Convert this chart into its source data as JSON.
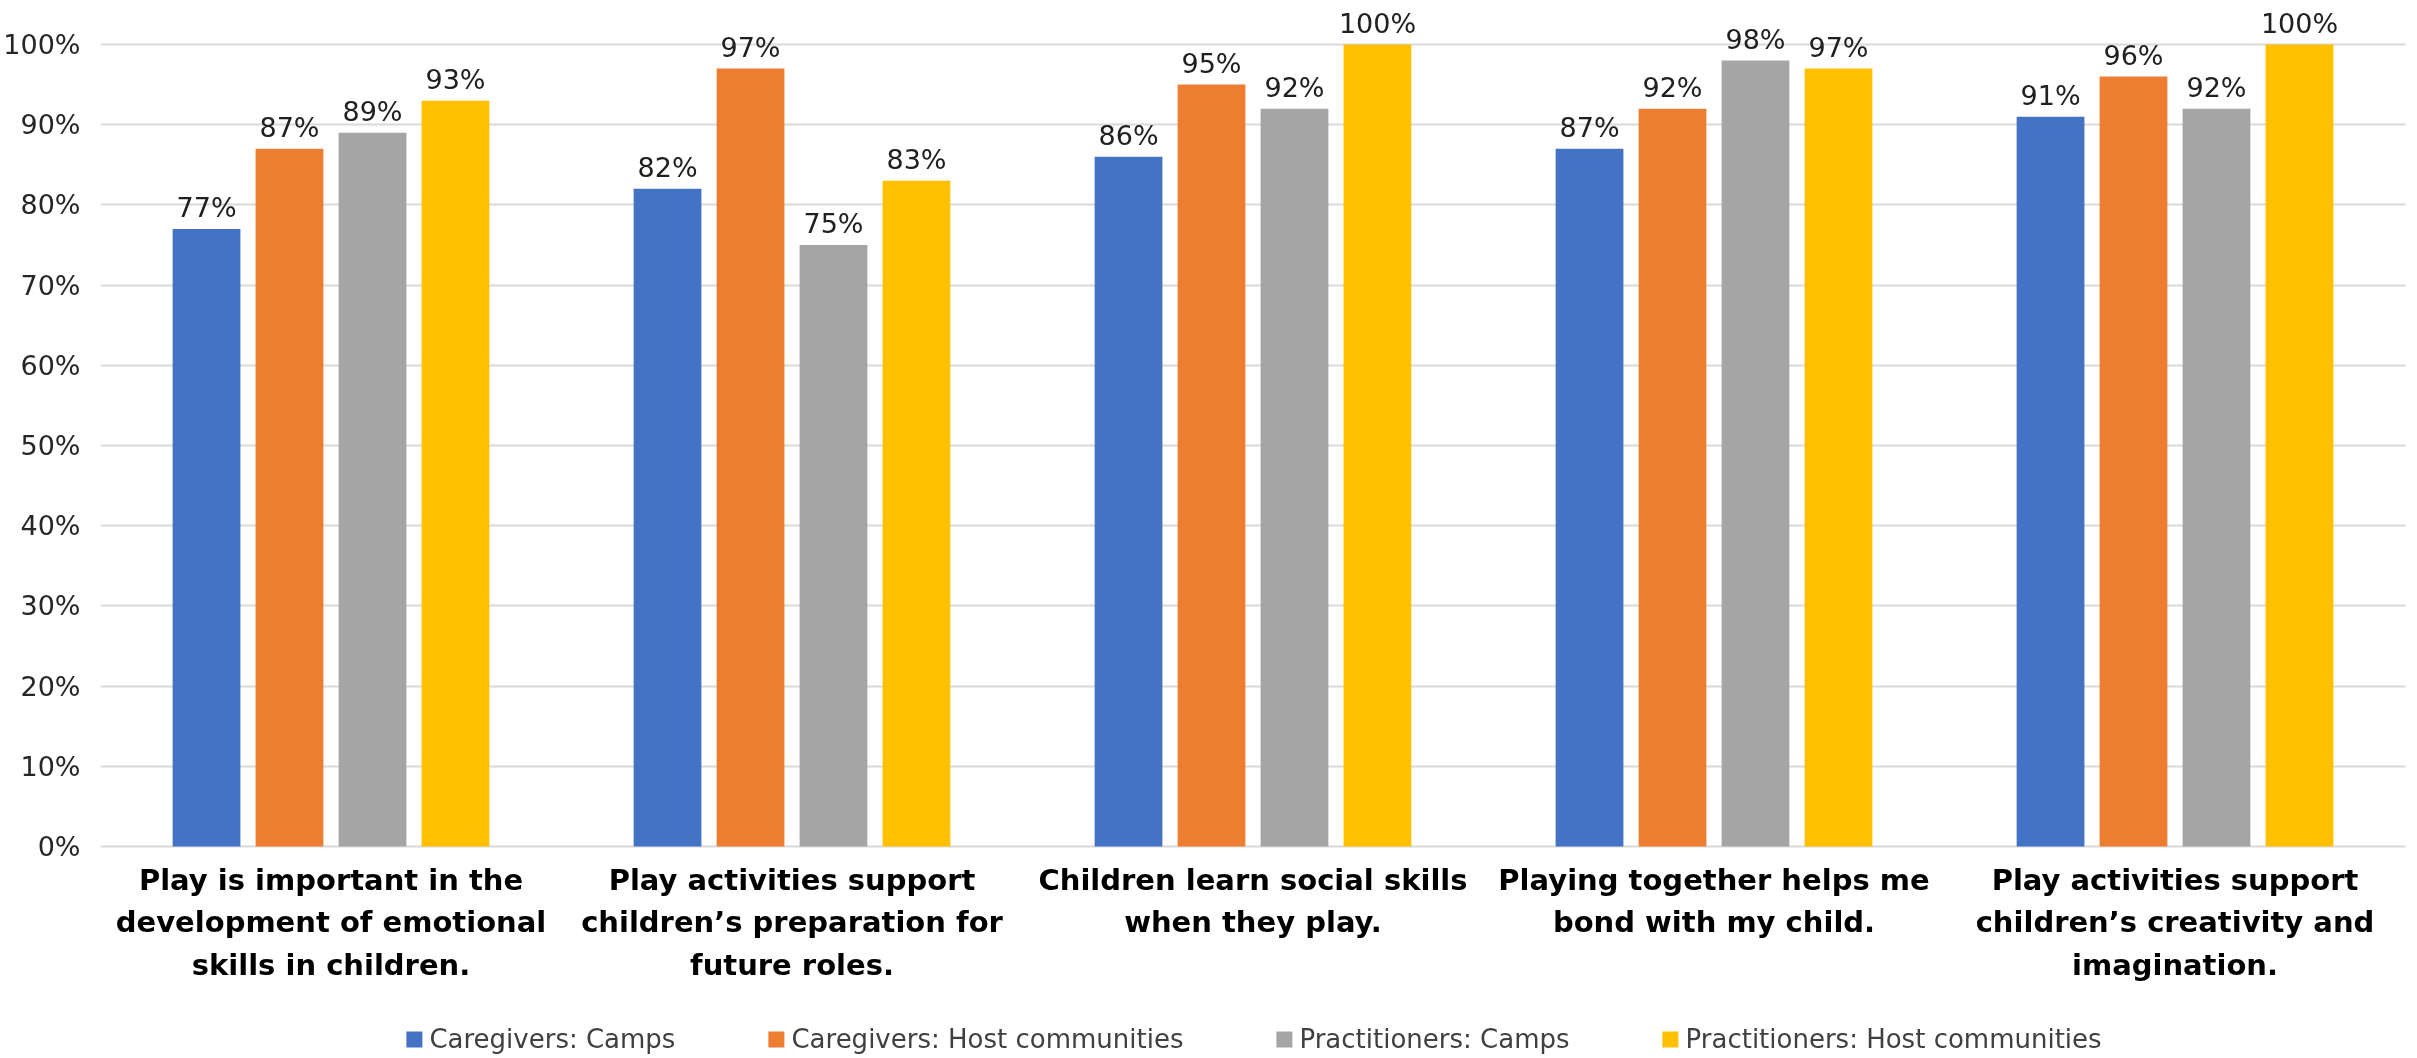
{
  "chart_data": {
    "type": "bar",
    "categories": [
      "Play is important in the development of emotional skills in children.",
      "Play activities support children’s preparation for future roles.",
      "Children learn social skills when they play.",
      "Playing together helps me bond with my child.",
      "Play activities support children’s creativity and imagination."
    ],
    "series": [
      {
        "name": "Caregivers: Camps",
        "color": "#4472c4",
        "values": [
          77,
          82,
          86,
          87,
          91
        ],
        "value_labels": [
          "77%",
          "82%",
          "86%",
          "87%",
          "91%"
        ]
      },
      {
        "name": "Caregivers: Host communities",
        "color": "#ed7d31",
        "values": [
          87,
          97,
          95,
          92,
          96
        ],
        "value_labels": [
          "87%",
          "97%",
          "95%",
          "92%",
          "96%"
        ]
      },
      {
        "name": "Practitioners: Camps",
        "color": "#a5a5a5",
        "values": [
          89,
          75,
          92,
          98,
          92
        ],
        "value_labels": [
          "89%",
          "75%",
          "92%",
          "98%",
          "92%"
        ]
      },
      {
        "name": "Practitioners: Host communities",
        "color": "#ffc000",
        "values": [
          93,
          83,
          100,
          97,
          100
        ],
        "value_labels": [
          "93%",
          "83%",
          "100%",
          "97%",
          "100%"
        ]
      }
    ],
    "ylim": [
      0,
      100
    ],
    "yticks": [
      {
        "value": 0,
        "label": "0%"
      },
      {
        "value": 10,
        "label": "10%"
      },
      {
        "value": 20,
        "label": "20%"
      },
      {
        "value": 30,
        "label": "30%"
      },
      {
        "value": 40,
        "label": "40%"
      },
      {
        "value": 50,
        "label": "50%"
      },
      {
        "value": 60,
        "label": "60%"
      },
      {
        "value": 70,
        "label": "70%"
      },
      {
        "value": 80,
        "label": "80%"
      },
      {
        "value": 90,
        "label": "90%"
      },
      {
        "value": 100,
        "label": "100%"
      }
    ],
    "grid": "y",
    "legend": "bottom"
  }
}
